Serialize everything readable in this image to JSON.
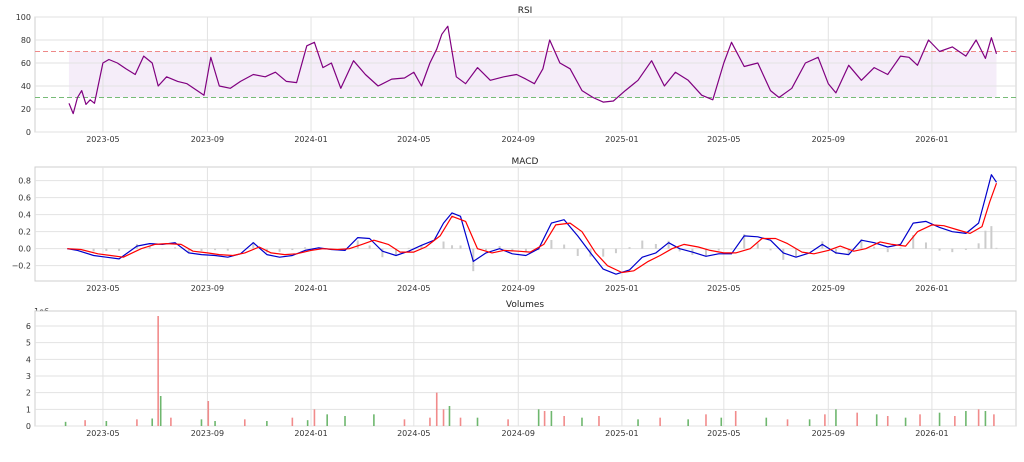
{
  "chart_data": [
    {
      "type": "line",
      "title": "RSI",
      "ylim": [
        0,
        100
      ],
      "yticks": [
        "0",
        "20",
        "40",
        "60",
        "80",
        "100"
      ],
      "ytick_values": [
        0,
        20,
        40,
        60,
        80,
        100
      ],
      "xlim": [
        "2023-02-10",
        "2026-04-10"
      ],
      "xticks": [
        "2023-05",
        "2023-09",
        "2024-01",
        "2024-05",
        "2024-09",
        "2025-01",
        "2025-05",
        "2025-09",
        "2026-01"
      ],
      "xtick_dates": [
        "2023-05-01",
        "2023-09-01",
        "2024-01-01",
        "2024-05-01",
        "2024-09-01",
        "2025-01-01",
        "2025-05-01",
        "2025-09-01",
        "2026-01-01"
      ],
      "grid": true,
      "band": {
        "lower": 30,
        "upper": 70,
        "color": "#f3e8f7"
      },
      "overbought": {
        "value": 70,
        "color": "#ee8888"
      },
      "oversold": {
        "value": 30,
        "color": "#77bb77"
      },
      "series": [
        {
          "color": "#800080",
          "x": [
            "2023-03-22",
            "2023-03-27",
            "2023-04-01",
            "2023-04-06",
            "2023-04-11",
            "2023-04-16",
            "2023-04-21",
            "2023-05-01",
            "2023-05-08",
            "2023-05-18",
            "2023-05-28",
            "2023-06-08",
            "2023-06-18",
            "2023-06-28",
            "2023-07-05",
            "2023-07-15",
            "2023-07-28",
            "2023-08-08",
            "2023-08-20",
            "2023-08-28",
            "2023-09-05",
            "2023-09-15",
            "2023-09-28",
            "2023-10-10",
            "2023-10-25",
            "2023-11-08",
            "2023-11-20",
            "2023-12-03",
            "2023-12-15",
            "2023-12-27",
            "2024-01-05",
            "2024-01-15",
            "2024-01-25",
            "2024-02-05",
            "2024-02-20",
            "2024-03-05",
            "2024-03-20",
            "2024-04-05",
            "2024-04-20",
            "2024-05-01",
            "2024-05-10",
            "2024-05-20",
            "2024-05-28",
            "2024-06-03",
            "2024-06-10",
            "2024-06-20",
            "2024-07-01",
            "2024-07-15",
            "2024-07-30",
            "2024-08-15",
            "2024-08-30",
            "2024-09-10",
            "2024-09-20",
            "2024-09-30",
            "2024-10-08",
            "2024-10-20",
            "2024-11-01",
            "2024-11-15",
            "2024-11-28",
            "2024-12-10",
            "2024-12-22",
            "2025-01-05",
            "2025-01-20",
            "2025-02-05",
            "2025-02-20",
            "2025-03-05",
            "2025-03-20",
            "2025-04-05",
            "2025-04-18",
            "2025-05-01",
            "2025-05-10",
            "2025-05-25",
            "2025-06-10",
            "2025-06-25",
            "2025-07-05",
            "2025-07-20",
            "2025-08-05",
            "2025-08-20",
            "2025-09-01",
            "2025-09-10",
            "2025-09-25",
            "2025-10-10",
            "2025-10-25",
            "2025-11-10",
            "2025-11-25",
            "2025-12-05",
            "2025-12-15",
            "2025-12-28",
            "2026-01-10",
            "2026-01-25",
            "2026-02-10",
            "2026-02-22",
            "2026-03-05",
            "2026-03-12",
            "2026-03-18"
          ],
          "values": [
            25,
            16,
            30,
            36,
            24,
            28,
            25,
            60,
            63,
            60,
            55,
            50,
            66,
            60,
            40,
            48,
            44,
            42,
            36,
            32,
            65,
            40,
            38,
            44,
            50,
            48,
            52,
            44,
            43,
            75,
            78,
            56,
            60,
            38,
            62,
            50,
            40,
            46,
            47,
            52,
            40,
            60,
            72,
            85,
            92,
            48,
            42,
            56,
            45,
            48,
            50,
            46,
            42,
            55,
            80,
            60,
            55,
            36,
            30,
            26,
            27,
            36,
            45,
            62,
            40,
            52,
            45,
            32,
            28,
            60,
            78,
            57,
            60,
            36,
            30,
            38,
            60,
            65,
            42,
            34,
            58,
            45,
            56,
            50,
            66,
            65,
            58,
            80,
            70,
            74,
            66,
            80,
            64,
            82,
            68
          ]
        }
      ]
    },
    {
      "type": "line",
      "title": "MACD",
      "ylim": [
        -0.38,
        0.96
      ],
      "yticks": [
        "−0.2",
        "0.0",
        "0.2",
        "0.4",
        "0.6",
        "0.8"
      ],
      "ytick_values": [
        -0.2,
        0.0,
        0.2,
        0.4,
        0.6,
        0.8
      ],
      "xlim": [
        "2023-02-10",
        "2026-04-10"
      ],
      "xticks": [
        "2023-05",
        "2023-09",
        "2024-01",
        "2024-05",
        "2024-09",
        "2025-01",
        "2025-05",
        "2025-09",
        "2026-01"
      ],
      "xtick_dates": [
        "2023-05-01",
        "2023-09-01",
        "2024-01-01",
        "2024-05-01",
        "2024-09-01",
        "2025-01-01",
        "2025-05-01",
        "2025-09-01",
        "2026-01-01"
      ],
      "grid": true,
      "histogram_color": "#cccccc",
      "series": [
        {
          "color": "#0000cc",
          "x": [
            "2023-03-20",
            "2023-04-01",
            "2023-04-20",
            "2023-05-05",
            "2023-05-20",
            "2023-06-10",
            "2023-06-25",
            "2023-07-10",
            "2023-07-25",
            "2023-08-10",
            "2023-08-25",
            "2023-09-10",
            "2023-09-25",
            "2023-10-10",
            "2023-10-25",
            "2023-11-10",
            "2023-11-25",
            "2023-12-10",
            "2023-12-25",
            "2024-01-10",
            "2024-01-25",
            "2024-02-10",
            "2024-02-25",
            "2024-03-10",
            "2024-03-25",
            "2024-04-10",
            "2024-04-25",
            "2024-05-10",
            "2024-05-25",
            "2024-06-05",
            "2024-06-15",
            "2024-06-25",
            "2024-07-10",
            "2024-07-25",
            "2024-08-10",
            "2024-08-25",
            "2024-09-10",
            "2024-09-25",
            "2024-10-10",
            "2024-10-25",
            "2024-11-10",
            "2024-11-25",
            "2024-12-10",
            "2024-12-25",
            "2025-01-10",
            "2025-01-25",
            "2025-02-10",
            "2025-02-25",
            "2025-03-10",
            "2025-03-25",
            "2025-04-10",
            "2025-04-25",
            "2025-05-10",
            "2025-05-25",
            "2025-06-10",
            "2025-06-25",
            "2025-07-10",
            "2025-07-25",
            "2025-08-10",
            "2025-08-25",
            "2025-09-10",
            "2025-09-25",
            "2025-10-10",
            "2025-10-25",
            "2025-11-10",
            "2025-11-25",
            "2025-12-10",
            "2025-12-25",
            "2026-01-10",
            "2026-01-25",
            "2026-02-10",
            "2026-02-25",
            "2026-03-05",
            "2026-03-12",
            "2026-03-18"
          ],
          "values": [
            0.0,
            -0.02,
            -0.08,
            -0.1,
            -0.12,
            0.03,
            0.06,
            0.05,
            0.07,
            -0.05,
            -0.07,
            -0.08,
            -0.1,
            -0.06,
            0.07,
            -0.07,
            -0.1,
            -0.08,
            -0.02,
            0.01,
            -0.01,
            -0.02,
            0.13,
            0.12,
            -0.03,
            -0.08,
            -0.03,
            0.04,
            0.1,
            0.3,
            0.42,
            0.38,
            -0.15,
            -0.05,
            0.0,
            -0.06,
            -0.08,
            0.0,
            0.3,
            0.34,
            0.15,
            -0.05,
            -0.24,
            -0.3,
            -0.25,
            -0.1,
            -0.05,
            0.07,
            0.0,
            -0.04,
            -0.09,
            -0.06,
            -0.06,
            0.15,
            0.14,
            0.1,
            -0.05,
            -0.1,
            -0.05,
            0.05,
            -0.05,
            -0.07,
            0.1,
            0.07,
            0.02,
            0.05,
            0.3,
            0.32,
            0.25,
            0.2,
            0.18,
            0.3,
            0.6,
            0.87,
            0.78
          ]
        },
        {
          "color": "#ff0000",
          "x": [
            "2023-03-20",
            "2023-04-05",
            "2023-04-25",
            "2023-05-10",
            "2023-05-25",
            "2023-06-15",
            "2023-07-01",
            "2023-07-15",
            "2023-08-01",
            "2023-08-15",
            "2023-09-01",
            "2023-09-15",
            "2023-10-01",
            "2023-10-15",
            "2023-11-01",
            "2023-11-15",
            "2023-12-01",
            "2023-12-15",
            "2024-01-01",
            "2024-01-15",
            "2024-02-01",
            "2024-02-15",
            "2024-03-01",
            "2024-03-15",
            "2024-04-01",
            "2024-04-15",
            "2024-05-01",
            "2024-05-15",
            "2024-06-01",
            "2024-06-15",
            "2024-07-01",
            "2024-07-15",
            "2024-08-01",
            "2024-08-15",
            "2024-09-01",
            "2024-09-15",
            "2024-10-01",
            "2024-10-15",
            "2024-11-01",
            "2024-11-15",
            "2024-12-01",
            "2024-12-15",
            "2025-01-01",
            "2025-01-15",
            "2025-02-01",
            "2025-02-15",
            "2025-03-01",
            "2025-03-15",
            "2025-04-01",
            "2025-04-15",
            "2025-05-01",
            "2025-05-15",
            "2025-06-01",
            "2025-06-15",
            "2025-07-01",
            "2025-07-15",
            "2025-08-01",
            "2025-08-15",
            "2025-09-01",
            "2025-09-15",
            "2025-10-01",
            "2025-10-15",
            "2025-11-01",
            "2025-11-15",
            "2025-12-01",
            "2025-12-15",
            "2026-01-01",
            "2026-01-15",
            "2026-02-01",
            "2026-02-15",
            "2026-03-01",
            "2026-03-10",
            "2026-03-18"
          ],
          "values": [
            0.0,
            -0.01,
            -0.06,
            -0.08,
            -0.1,
            0.0,
            0.05,
            0.06,
            0.05,
            -0.03,
            -0.05,
            -0.07,
            -0.08,
            -0.05,
            0.02,
            -0.05,
            -0.07,
            -0.06,
            -0.02,
            0.0,
            -0.01,
            0.0,
            0.05,
            0.1,
            0.05,
            -0.04,
            -0.04,
            0.02,
            0.15,
            0.38,
            0.32,
            0.0,
            -0.05,
            -0.02,
            -0.03,
            -0.04,
            0.05,
            0.28,
            0.3,
            0.2,
            -0.05,
            -0.2,
            -0.28,
            -0.26,
            -0.15,
            -0.08,
            0.0,
            0.05,
            0.02,
            -0.02,
            -0.05,
            -0.05,
            0.0,
            0.12,
            0.12,
            0.06,
            -0.04,
            -0.06,
            -0.02,
            0.03,
            -0.03,
            0.0,
            0.08,
            0.05,
            0.03,
            0.2,
            0.28,
            0.27,
            0.22,
            0.18,
            0.26,
            0.55,
            0.77
          ]
        }
      ]
    },
    {
      "type": "bar",
      "title": "Volumes",
      "scale_label": "1e6",
      "ylim": [
        0,
        6.9
      ],
      "yticks": [
        "0",
        "1",
        "2",
        "3",
        "4",
        "5",
        "6"
      ],
      "ytick_values": [
        0,
        1,
        2,
        3,
        4,
        5,
        6
      ],
      "xlim": [
        "2023-02-10",
        "2026-04-10"
      ],
      "xticks": [
        "2023-05",
        "2023-09",
        "2024-01",
        "2024-05",
        "2024-09",
        "2025-01",
        "2025-05",
        "2025-09",
        "2026-01"
      ],
      "xtick_dates": [
        "2023-05-01",
        "2023-09-01",
        "2024-01-01",
        "2024-05-01",
        "2024-09-01",
        "2025-01-01",
        "2025-05-01",
        "2025-09-01",
        "2026-01-01"
      ],
      "grid": true,
      "up_color": "#55aa55",
      "down_color": "#ee7777",
      "x": [
        "2023-03-18",
        "2023-04-10",
        "2023-05-05",
        "2023-06-10",
        "2023-06-28",
        "2023-07-05",
        "2023-07-08",
        "2023-07-20",
        "2023-08-25",
        "2023-09-02",
        "2023-09-10",
        "2023-10-15",
        "2023-11-10",
        "2023-12-10",
        "2023-12-28",
        "2024-01-05",
        "2024-01-20",
        "2024-02-10",
        "2024-03-15",
        "2024-04-20",
        "2024-05-20",
        "2024-05-28",
        "2024-06-05",
        "2024-06-12",
        "2024-06-25",
        "2024-07-15",
        "2024-08-20",
        "2024-09-25",
        "2024-10-02",
        "2024-10-10",
        "2024-10-25",
        "2024-11-15",
        "2024-12-05",
        "2025-01-20",
        "2025-02-15",
        "2025-03-20",
        "2025-04-10",
        "2025-04-28",
        "2025-05-15",
        "2025-06-20",
        "2025-07-15",
        "2025-08-10",
        "2025-08-28",
        "2025-09-10",
        "2025-10-05",
        "2025-10-28",
        "2025-11-10",
        "2025-12-01",
        "2025-12-18",
        "2026-01-10",
        "2026-01-28",
        "2026-02-10",
        "2026-02-25",
        "2026-03-05",
        "2026-03-15"
      ],
      "values": [
        0.25,
        0.35,
        0.3,
        0.4,
        0.45,
        6.6,
        1.8,
        0.5,
        0.4,
        1.5,
        0.3,
        0.4,
        0.3,
        0.5,
        0.35,
        1.0,
        0.7,
        0.6,
        0.7,
        0.4,
        0.5,
        2.0,
        1.0,
        1.2,
        0.5,
        0.5,
        0.4,
        1.0,
        0.9,
        0.9,
        0.6,
        0.5,
        0.6,
        0.4,
        0.5,
        0.4,
        0.7,
        0.5,
        0.9,
        0.5,
        0.4,
        0.4,
        0.7,
        1.0,
        0.8,
        0.7,
        0.6,
        0.5,
        0.7,
        0.8,
        0.6,
        0.9,
        1.0,
        0.9,
        0.7
      ],
      "up": [
        true,
        false,
        true,
        false,
        true,
        false,
        true,
        false,
        true,
        false,
        true,
        false,
        true,
        false,
        true,
        false,
        true,
        true,
        true,
        false,
        false,
        false,
        false,
        true,
        false,
        true,
        false,
        true,
        false,
        true,
        false,
        true,
        false,
        true,
        false,
        true,
        false,
        true,
        false,
        true,
        false,
        true,
        false,
        true,
        false,
        true,
        false,
        true,
        false,
        true,
        false,
        true,
        false,
        true,
        false
      ]
    }
  ]
}
